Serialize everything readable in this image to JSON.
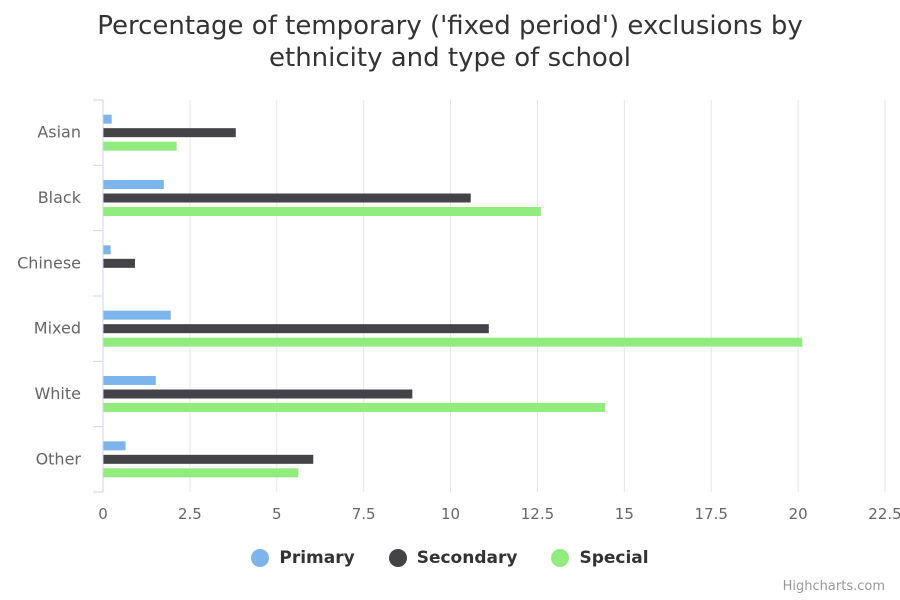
{
  "chart_data": {
    "type": "bar",
    "orientation": "horizontal",
    "title": [
      "Percentage of temporary ('fixed period') exclusions by",
      "ethnicity and type of school"
    ],
    "categories": [
      "Asian",
      "Black",
      "Chinese",
      "Mixed",
      "White",
      "Other"
    ],
    "series": [
      {
        "name": "Primary",
        "color": "#7cb5ec",
        "values": [
          0.25,
          1.75,
          0.22,
          1.95,
          1.52,
          0.65
        ]
      },
      {
        "name": "Secondary",
        "color": "#434348",
        "values": [
          3.82,
          10.58,
          0.92,
          11.1,
          8.9,
          6.05
        ]
      },
      {
        "name": "Special",
        "color": "#90ed7d",
        "values": [
          2.12,
          12.6,
          0,
          20.12,
          14.45,
          5.62
        ]
      }
    ],
    "xlim": [
      0,
      22.5
    ],
    "ticks": [
      "0",
      "2.5",
      "5",
      "7.5",
      "10",
      "12.5",
      "15",
      "17.5",
      "20",
      "22.5"
    ],
    "tick_values": [
      0,
      2.5,
      5,
      7.5,
      10,
      12.5,
      15,
      17.5,
      20,
      22.5
    ],
    "grid": true,
    "legend": "bottom-center"
  },
  "credits": "Highcharts.com"
}
